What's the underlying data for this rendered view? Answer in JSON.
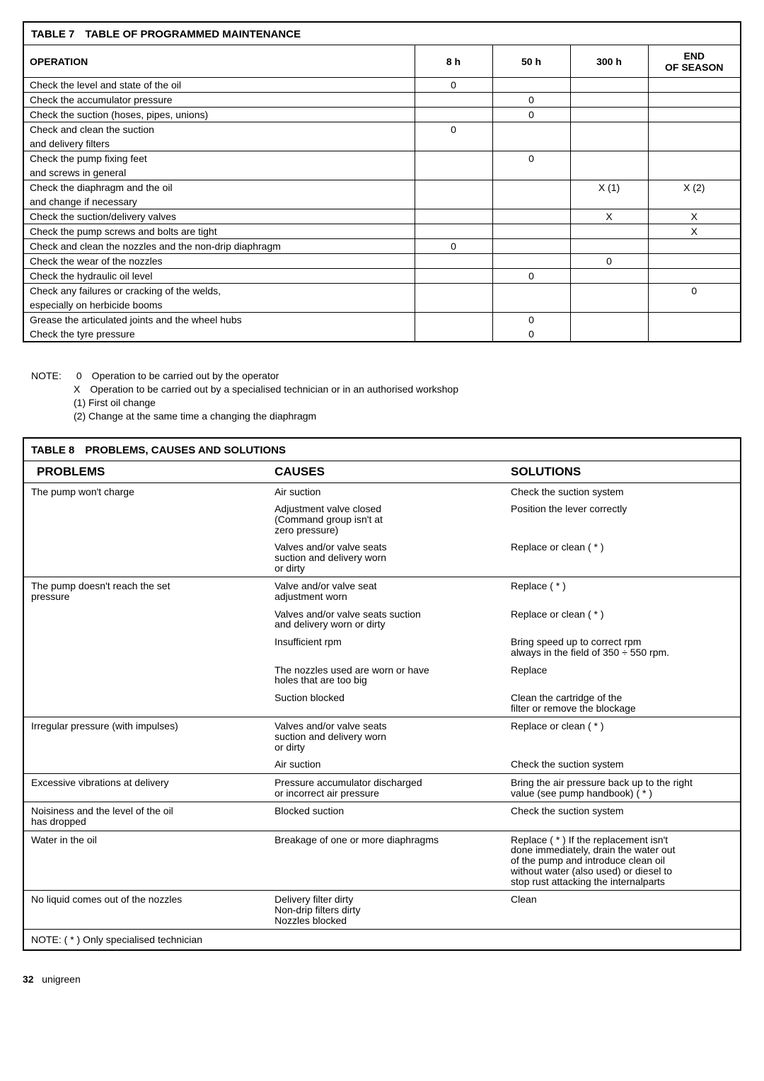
{
  "table7": {
    "title": "TABLE 7 TABLE OF PROGRAMMED MAINTENANCE",
    "headers": {
      "op": "OPERATION",
      "h8": "8 h",
      "h50": "50 h",
      "h300": "300 h",
      "end1": "END",
      "end2": "OF SEASON"
    },
    "rows": [
      {
        "op": "Check the level and state of the oil",
        "c": [
          "0",
          "",
          "",
          ""
        ],
        "bb": true
      },
      {
        "op": "Check the accumulator pressure",
        "c": [
          "",
          "0",
          "",
          ""
        ],
        "bb": true
      },
      {
        "op": "Check the suction (hoses, pipes, unions)",
        "c": [
          "",
          "0",
          "",
          ""
        ],
        "bb": true
      },
      {
        "op": "Check and clean the suction",
        "c": [
          "0",
          "",
          "",
          ""
        ],
        "bb": false
      },
      {
        "op": "and delivery filters",
        "c": [
          "",
          "",
          "",
          ""
        ],
        "bb": true
      },
      {
        "op": "Check the pump fixing feet",
        "c": [
          "",
          "0",
          "",
          ""
        ],
        "bb": false
      },
      {
        "op": "and screws in general",
        "c": [
          "",
          "",
          "",
          ""
        ],
        "bb": true
      },
      {
        "op": "Check the diaphragm and the oil",
        "c": [
          "",
          "",
          "X (1)",
          "X (2)"
        ],
        "bb": false
      },
      {
        "op": "and change if necessary",
        "c": [
          "",
          "",
          "",
          ""
        ],
        "bb": true
      },
      {
        "op": "Check the suction/delivery valves",
        "c": [
          "",
          "",
          "X",
          "X"
        ],
        "bb": true
      },
      {
        "op": "Check the pump screws and bolts are tight",
        "c": [
          "",
          "",
          "",
          "X"
        ],
        "bb": true
      },
      {
        "op": "Check and clean the nozzles and the non-drip diaphragm",
        "c": [
          "0",
          "",
          "",
          ""
        ],
        "bb": true
      },
      {
        "op": "Check the wear of the nozzles",
        "c": [
          "",
          "",
          "0",
          ""
        ],
        "bb": true
      },
      {
        "op": "Check the hydraulic oil level",
        "c": [
          "",
          "0",
          "",
          ""
        ],
        "bb": true
      },
      {
        "op": "Check any failures or cracking of the welds,",
        "c": [
          "",
          "",
          "",
          "0"
        ],
        "bb": false
      },
      {
        "op": "especially on herbicide booms",
        "c": [
          "",
          "",
          "",
          ""
        ],
        "bb": true
      },
      {
        "op": "Grease the articulated joints and the wheel hubs",
        "c": [
          "",
          "0",
          "",
          ""
        ],
        "bb": false
      },
      {
        "op": "Check the tyre pressure",
        "c": [
          "",
          "0",
          "",
          ""
        ],
        "bb": false
      }
    ],
    "notes": {
      "label": "NOTE:",
      "l1": "0 Operation to be carried out by the operator",
      "l2": "X Operation to be carried out by a specialised technician or in an authorised workshop",
      "l3": "(1) First oil change",
      "l4": "(2) Change at the same time a changing the diaphragm"
    }
  },
  "table8": {
    "title": "TABLE 8 PROBLEMS, CAUSES AND SOLUTIONS",
    "headers": {
      "p": "PROBLEMS",
      "c": "CAUSES",
      "s": "SOLUTIONS"
    },
    "groups": [
      {
        "problem": "The pump won't charge",
        "rows": [
          {
            "c": "Air suction",
            "s": "Check the suction system"
          },
          {
            "c": "Adjustment valve closed\n(Command group isn't at\nzero pressure)",
            "s": "Position the lever correctly"
          },
          {
            "c": "Valves and/or valve seats\nsuction and delivery worn\nor dirty",
            "s": "Replace or clean ( * )"
          }
        ]
      },
      {
        "problem": "The pump doesn't reach the set\npressure",
        "rows": [
          {
            "c": "Valve and/or valve seat\nadjustment worn",
            "s": "Replace ( * )"
          },
          {
            "c": "Valves and/or valve seats suction\nand delivery worn or dirty",
            "s": "Replace or clean ( * )"
          },
          {
            "c": "Insufficient rpm",
            "s": "Bring speed up to correct rpm\nalways in the field of 350 ÷ 550 rpm."
          },
          {
            "c": "The nozzles used are worn or have\nholes that are too big",
            "s": "Replace"
          },
          {
            "c": "Suction blocked",
            "s": "Clean the cartridge of the\nfilter or remove the blockage"
          }
        ]
      },
      {
        "problem": "Irregular pressure (with impulses)",
        "rows": [
          {
            "c": "Valves and/or valve seats\nsuction and delivery worn\nor dirty",
            "s": "Replace or clean ( * )"
          },
          {
            "c": "Air suction",
            "s": "Check the suction system"
          }
        ]
      },
      {
        "problem": "Excessive vibrations at delivery",
        "rows": [
          {
            "c": "Pressure accumulator discharged\nor incorrect air pressure",
            "s": "Bring the air pressure back up to the right\nvalue (see pump handbook) ( * )"
          }
        ]
      },
      {
        "problem": "Noisiness and the level of the oil\nhas dropped",
        "rows": [
          {
            "c": "Blocked suction",
            "s": "Check the suction system"
          }
        ]
      },
      {
        "problem": "Water in the oil",
        "rows": [
          {
            "c": "Breakage of one or more diaphragms",
            "s": "Replace ( * ) If the replacement isn't\ndone immediately, drain the water out\nof the pump and introduce clean oil\nwithout water (also used) or diesel to\nstop rust attacking the internalparts"
          }
        ]
      },
      {
        "problem": "No liquid comes out of the nozzles",
        "rows": [
          {
            "c": "Delivery filter dirty\nNon-drip filters dirty\nNozzles blocked",
            "s": "Clean"
          }
        ]
      }
    ],
    "note": "NOTE: ( * ) Only specialised technician"
  },
  "footer": {
    "page": "32",
    "brand": "unigreen"
  }
}
